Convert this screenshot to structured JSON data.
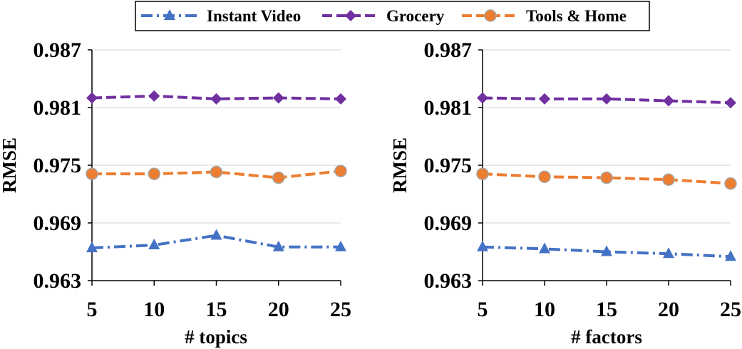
{
  "legend": {
    "items": [
      {
        "label": "Instant Video",
        "color": "#4472C4",
        "marker": "triangle",
        "dash": "dash-dot"
      },
      {
        "label": "Grocery",
        "color": "#7030A0",
        "marker": "diamond",
        "dash": "dash"
      },
      {
        "label": "Tools & Home",
        "color": "#ED7D31",
        "marker": "circle",
        "dash": "dash"
      }
    ]
  },
  "chart_data": [
    {
      "type": "line",
      "xlabel": "# topics",
      "ylabel": "RMSE",
      "x": [
        5,
        10,
        15,
        20,
        25
      ],
      "ylim": [
        0.963,
        0.987
      ],
      "yticks": [
        "0.963",
        "0.969",
        "0.975",
        "0.981",
        "0.987"
      ],
      "grid": true,
      "series": [
        {
          "name": "Instant Video",
          "values": [
            0.9664,
            0.9667,
            0.9677,
            0.9665,
            0.9665
          ]
        },
        {
          "name": "Grocery",
          "values": [
            0.982,
            0.9822,
            0.9819,
            0.982,
            0.9819
          ]
        },
        {
          "name": "Tools & Home",
          "values": [
            0.9741,
            0.9741,
            0.9743,
            0.9737,
            0.9744
          ]
        }
      ]
    },
    {
      "type": "line",
      "xlabel": "# factors",
      "ylabel": "RMSE",
      "x": [
        5,
        10,
        15,
        20,
        25
      ],
      "ylim": [
        0.963,
        0.987
      ],
      "yticks": [
        "0.963",
        "0.969",
        "0.975",
        "0.981",
        "0.987"
      ],
      "grid": true,
      "series": [
        {
          "name": "Instant Video",
          "values": [
            0.9665,
            0.9663,
            0.966,
            0.9658,
            0.9655
          ]
        },
        {
          "name": "Grocery",
          "values": [
            0.982,
            0.9819,
            0.9819,
            0.9817,
            0.9815
          ]
        },
        {
          "name": "Tools & Home",
          "values": [
            0.9741,
            0.9738,
            0.9737,
            0.9735,
            0.9731
          ]
        }
      ]
    }
  ]
}
